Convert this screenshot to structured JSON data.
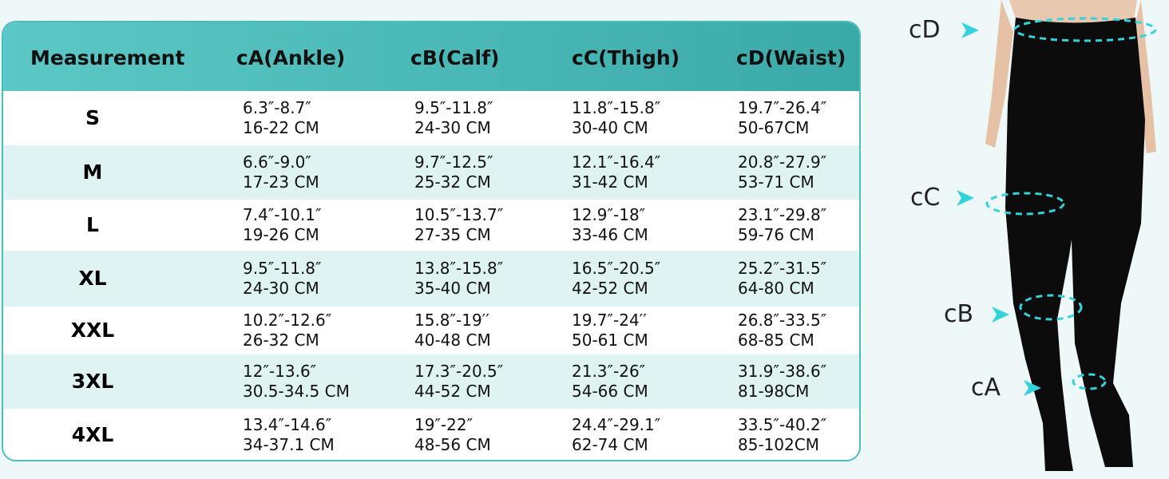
{
  "table": {
    "headers": [
      "Measurement",
      "cA(Ankle)",
      "cB(Calf)",
      "cC(Thigh)",
      "cD(Waist)"
    ],
    "rows": [
      {
        "size": "S",
        "cells": [
          [
            "6.3″-8.7″",
            "16-22 CM"
          ],
          [
            "9.5″-11.8″",
            "24-30 CM"
          ],
          [
            "11.8″-15.8″",
            "30-40 CM"
          ],
          [
            "19.7″-26.4″",
            "50-67CM"
          ]
        ]
      },
      {
        "size": "M",
        "cells": [
          [
            "6.6″-9.0″",
            "17-23 CM"
          ],
          [
            "9.7″-12.5″",
            "25-32 CM"
          ],
          [
            "12.1″-16.4″",
            "31-42 CM"
          ],
          [
            "20.8″-27.9″",
            "53-71 CM"
          ]
        ]
      },
      {
        "size": "L",
        "cells": [
          [
            "7.4″-10.1″",
            "19-26 CM"
          ],
          [
            "10.5″-13.7″",
            "27-35 CM"
          ],
          [
            "12.9″-18″",
            "33-46 CM"
          ],
          [
            "23.1″-29.8″",
            "59-76 CM"
          ]
        ]
      },
      {
        "size": "XL",
        "cells": [
          [
            "9.5″-11.8″",
            "24-30 CM"
          ],
          [
            "13.8″-15.8″",
            "35-40 CM"
          ],
          [
            "16.5″-20.5″",
            "42-52 CM"
          ],
          [
            "25.2″-31.5″",
            "64-80 CM"
          ]
        ]
      },
      {
        "size": "XXL",
        "cells": [
          [
            "10.2″-12.6″",
            "26-32 CM"
          ],
          [
            "15.8″-19′′",
            "40-48 CM"
          ],
          [
            "19.7″-24′′",
            "50-61 CM"
          ],
          [
            "26.8″-33.5″",
            "68-85 CM"
          ]
        ]
      },
      {
        "size": "3XL",
        "cells": [
          [
            "12″-13.6″",
            "30.5-34.5 CM"
          ],
          [
            "17.3″-20.5″",
            "44-52 CM"
          ],
          [
            "21.3″-26″",
            "54-66 CM"
          ],
          [
            "31.9″-38.6″",
            "81-98CM"
          ]
        ]
      },
      {
        "size": "4XL",
        "cells": [
          [
            "13.4″-14.6″",
            "34-37.1 CM"
          ],
          [
            "19″-22″",
            "48-56 CM"
          ],
          [
            "24.4″-29.1″",
            "62-74 CM"
          ],
          [
            "33.5″-40.2″",
            "85-102CM"
          ]
        ]
      }
    ]
  },
  "figure": {
    "labels": [
      "cD",
      "cC",
      "cB",
      "cA"
    ]
  }
}
